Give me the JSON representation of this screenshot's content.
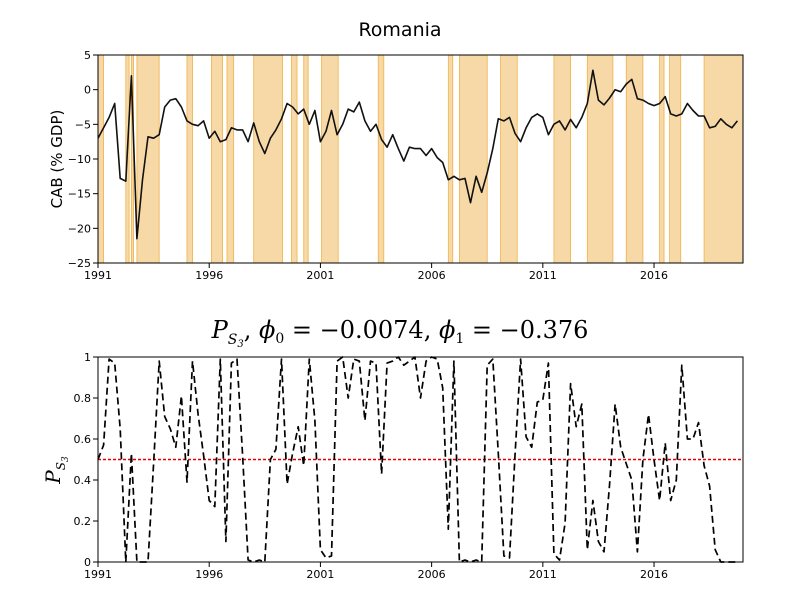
{
  "chart_data": [
    {
      "type": "line",
      "title": "Romania",
      "xlabel": "",
      "ylabel": "CAB (% GDP)",
      "xlim": [
        1991,
        2020
      ],
      "ylim": [
        -25,
        5
      ],
      "xticks": [
        1991,
        1996,
        2001,
        2006,
        2011,
        2016
      ],
      "yticks": [
        5,
        0,
        -5,
        -10,
        -15,
        -20,
        -25
      ],
      "ytick_labels": [
        "5",
        "0",
        "−5",
        "−10",
        "−15",
        "−20",
        "−25"
      ],
      "grid": false,
      "line_color": "#000000",
      "shade_color": "#f6d9a6",
      "shade_edge_color": "#f0b24a",
      "shaded_periods": [
        [
          1991.0,
          1991.25
        ],
        [
          1992.25,
          1992.4
        ],
        [
          1992.5,
          1992.6
        ],
        [
          1992.75,
          1993.75
        ],
        [
          1995.0,
          1995.25
        ],
        [
          1996.1,
          1996.6
        ],
        [
          1996.8,
          1997.1
        ],
        [
          1998.0,
          1999.3
        ],
        [
          1999.7,
          1999.95
        ],
        [
          2000.25,
          2000.45
        ],
        [
          2001.05,
          2001.8
        ],
        [
          2003.6,
          2003.85
        ],
        [
          2006.75,
          2006.95
        ],
        [
          2007.25,
          2008.5
        ],
        [
          2009.1,
          2009.85
        ],
        [
          2011.5,
          2012.25
        ],
        [
          2013.0,
          2014.15
        ],
        [
          2014.75,
          2015.5
        ],
        [
          2016.25,
          2016.45
        ],
        [
          2016.7,
          2017.2
        ],
        [
          2018.25,
          2020.0
        ]
      ],
      "series": [
        {
          "x": [
            1991.0,
            1991.25,
            1991.5,
            1991.75,
            1992.0,
            1992.25,
            1992.5,
            1992.75,
            1993.0,
            1993.25,
            1993.5,
            1993.75,
            1994.0,
            1994.25,
            1994.5,
            1994.75,
            1995.0,
            1995.25,
            1995.5,
            1995.75,
            1996.0,
            1996.25,
            1996.5,
            1996.75,
            1997.0,
            1997.25,
            1997.5,
            1997.75,
            1998.0,
            1998.25,
            1998.5,
            1998.75,
            1999.0,
            1999.25,
            1999.5,
            1999.75,
            2000.0,
            2000.25,
            2000.5,
            2000.75,
            2001.0,
            2001.25,
            2001.5,
            2001.75,
            2002.0,
            2002.25,
            2002.5,
            2002.75,
            2003.0,
            2003.25,
            2003.5,
            2003.75,
            2004.0,
            2004.25,
            2004.5,
            2004.75,
            2005.0,
            2005.25,
            2005.5,
            2005.75,
            2006.0,
            2006.25,
            2006.5,
            2006.75,
            2007.0,
            2007.25,
            2007.5,
            2007.75,
            2008.0,
            2008.25,
            2008.5,
            2008.75,
            2009.0,
            2009.25,
            2009.5,
            2009.75,
            2010.0,
            2010.25,
            2010.5,
            2010.75,
            2011.0,
            2011.25,
            2011.5,
            2011.75,
            2012.0,
            2012.25,
            2012.5,
            2012.75,
            2013.0,
            2013.25,
            2013.5,
            2013.75,
            2014.0,
            2014.25,
            2014.5,
            2014.75,
            2015.0,
            2015.25,
            2015.5,
            2015.75,
            2016.0,
            2016.25,
            2016.5,
            2016.75,
            2017.0,
            2017.25,
            2017.5,
            2017.75,
            2018.0,
            2018.25,
            2018.5,
            2018.75,
            2019.0,
            2019.25,
            2019.5,
            2019.75
          ],
          "y": [
            -7.0,
            -5.5,
            -4.0,
            -2.0,
            -12.8,
            -13.2,
            2.0,
            -21.5,
            -13.0,
            -6.8,
            -7.0,
            -6.5,
            -2.5,
            -1.5,
            -1.3,
            -2.5,
            -4.5,
            -5.0,
            -5.2,
            -4.5,
            -7.0,
            -6.0,
            -7.5,
            -7.2,
            -5.5,
            -5.8,
            -5.8,
            -7.5,
            -4.8,
            -7.5,
            -9.2,
            -7.0,
            -5.8,
            -4.2,
            -2.0,
            -2.5,
            -3.5,
            -2.8,
            -5.0,
            -3.0,
            -7.5,
            -6.0,
            -3.0,
            -6.5,
            -5.0,
            -2.8,
            -3.2,
            -1.8,
            -4.5,
            -6.0,
            -5.0,
            -7.2,
            -8.3,
            -6.5,
            -8.5,
            -10.3,
            -8.3,
            -8.5,
            -8.5,
            -9.5,
            -8.5,
            -9.8,
            -10.5,
            -13.0,
            -12.5,
            -13.0,
            -12.8,
            -16.3,
            -12.5,
            -14.8,
            -12.0,
            -8.5,
            -4.2,
            -4.5,
            -4.0,
            -6.3,
            -7.5,
            -5.5,
            -4.0,
            -3.5,
            -4.0,
            -6.5,
            -5.0,
            -4.5,
            -5.8,
            -4.3,
            -5.5,
            -4.0,
            -2.0,
            2.8,
            -1.5,
            -2.2,
            -1.2,
            0.0,
            -0.3,
            0.8,
            1.5,
            -1.3,
            -1.5,
            -2.0,
            -2.3,
            -2.0,
            -1.0,
            -3.5,
            -3.8,
            -3.5,
            -2.0,
            -3.0,
            -3.8,
            -3.8,
            -5.5,
            -5.3,
            -4.2,
            -5.0,
            -5.5,
            -4.5
          ]
        }
      ]
    },
    {
      "type": "line",
      "title": "P_{S_3}, φ₀ = −0.0074, φ₁ = −0.376",
      "xlabel": "",
      "ylabel": "P_{S_3}",
      "xlim": [
        1991,
        2020
      ],
      "ylim": [
        0,
        1
      ],
      "xticks": [
        1991,
        1996,
        2001,
        2006,
        2011,
        2016
      ],
      "yticks": [
        0,
        0.2,
        0.4,
        0.6,
        0.8,
        1
      ],
      "ytick_labels": [
        "0",
        "0.2",
        "0.4",
        "0.6",
        "0.8",
        "1"
      ],
      "grid": false,
      "line_style": "dashed",
      "line_color": "#000000",
      "reference_line": {
        "y": 0.5,
        "color": "#e00000",
        "style": "dotted"
      },
      "series": [
        {
          "x": [
            1991.0,
            1991.25,
            1991.5,
            1991.75,
            1992.0,
            1992.25,
            1992.5,
            1992.75,
            1993.0,
            1993.25,
            1993.5,
            1993.75,
            1994.0,
            1994.25,
            1994.5,
            1994.75,
            1995.0,
            1995.25,
            1995.5,
            1995.75,
            1996.0,
            1996.25,
            1996.5,
            1996.75,
            1997.0,
            1997.25,
            1997.5,
            1997.75,
            1998.0,
            1998.25,
            1998.5,
            1998.75,
            1999.0,
            1999.25,
            1999.5,
            1999.75,
            2000.0,
            2000.25,
            2000.5,
            2000.75,
            2001.0,
            2001.25,
            2001.5,
            2001.75,
            2002.0,
            2002.25,
            2002.5,
            2002.75,
            2003.0,
            2003.25,
            2003.5,
            2003.75,
            2004.0,
            2004.25,
            2004.5,
            2004.75,
            2005.0,
            2005.25,
            2005.5,
            2005.75,
            2006.0,
            2006.25,
            2006.5,
            2006.75,
            2007.0,
            2007.25,
            2007.5,
            2007.75,
            2008.0,
            2008.25,
            2008.5,
            2008.75,
            2009.0,
            2009.25,
            2009.5,
            2009.75,
            2010.0,
            2010.25,
            2010.5,
            2010.75,
            2011.0,
            2011.25,
            2011.5,
            2011.75,
            2012.0,
            2012.25,
            2012.5,
            2012.75,
            2013.0,
            2013.25,
            2013.5,
            2013.75,
            2014.0,
            2014.25,
            2014.5,
            2014.75,
            2015.0,
            2015.25,
            2015.5,
            2015.75,
            2016.0,
            2016.25,
            2016.5,
            2016.75,
            2017.0,
            2017.25,
            2017.5,
            2017.75,
            2018.0,
            2018.25,
            2018.5,
            2018.75,
            2019.0,
            2019.25,
            2019.5,
            2019.75
          ],
          "y": [
            0.5,
            0.57,
            0.99,
            0.97,
            0.65,
            0.0,
            0.53,
            0.0,
            0.0,
            0.0,
            0.48,
            0.98,
            0.71,
            0.65,
            0.56,
            0.81,
            0.39,
            0.98,
            0.72,
            0.52,
            0.3,
            0.27,
            0.99,
            0.1,
            0.97,
            0.99,
            0.52,
            0.01,
            0.0,
            0.01,
            0.0,
            0.5,
            0.55,
            0.99,
            0.38,
            0.53,
            0.66,
            0.47,
            0.99,
            0.69,
            0.06,
            0.02,
            0.03,
            0.98,
            1.0,
            0.8,
            0.99,
            0.98,
            0.69,
            0.98,
            0.97,
            0.43,
            0.97,
            0.98,
            1.0,
            0.96,
            0.98,
            1.0,
            0.8,
            0.98,
            1.0,
            0.99,
            0.85,
            0.16,
            0.98,
            0.0,
            0.01,
            0.0,
            0.01,
            0.0,
            0.96,
            0.99,
            0.53,
            0.03,
            0.02,
            0.52,
            0.99,
            0.61,
            0.56,
            0.78,
            0.79,
            0.97,
            0.04,
            0.01,
            0.19,
            0.87,
            0.66,
            0.77,
            0.06,
            0.3,
            0.1,
            0.05,
            0.38,
            0.77,
            0.56,
            0.48,
            0.4,
            0.05,
            0.5,
            0.72,
            0.5,
            0.3,
            0.58,
            0.3,
            0.4,
            0.96,
            0.6,
            0.6,
            0.68,
            0.47,
            0.37,
            0.06,
            0.0,
            0.0,
            0.0,
            0.0
          ]
        }
      ]
    }
  ]
}
